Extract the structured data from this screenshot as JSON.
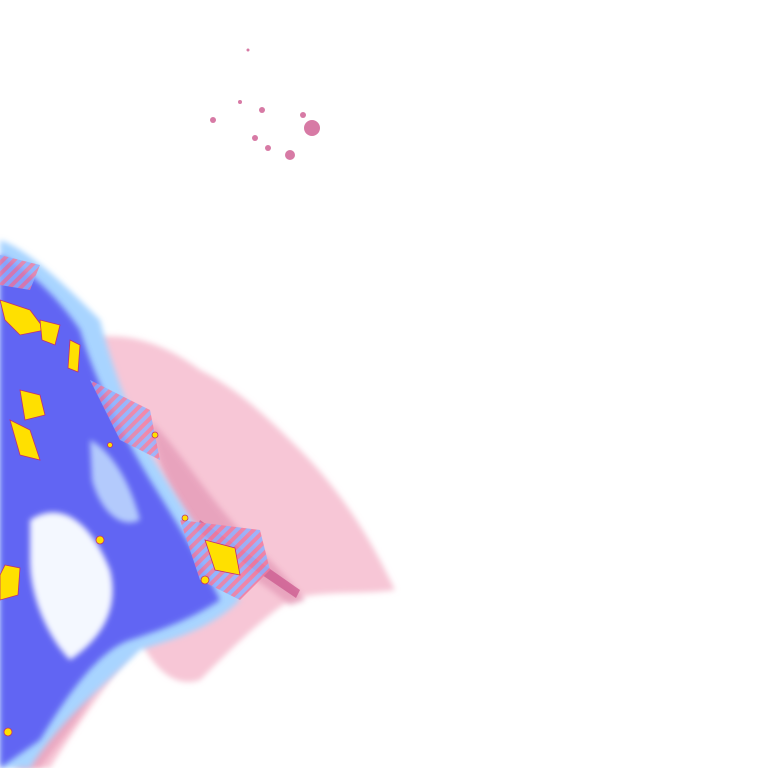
{
  "map": {
    "type": "precipitation-radar-tile",
    "legend_colors": {
      "light_snow": "#f7c6d6",
      "moderate_snow": "#e59bb8",
      "heavy_snow": "#c9528a",
      "light_rain": "#a8d4ff",
      "moderate_rain": "#6a6af5",
      "heavy_rain": "#2f2ff0",
      "very_heavy_rain": "#ffe000",
      "mixed": "#e8447a",
      "background": "#ffffff"
    }
  }
}
